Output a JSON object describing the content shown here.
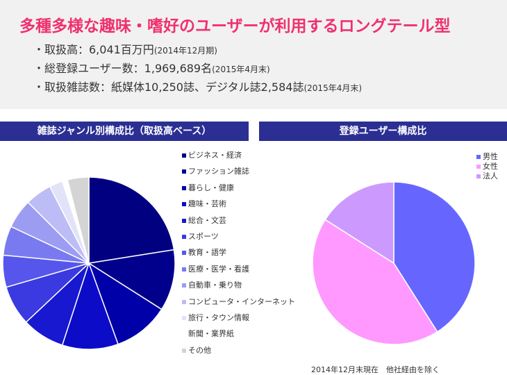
{
  "header": {
    "headline": "多種多様な趣味・嗜好のユーザーが利用するロングテール型",
    "bullets": [
      {
        "text": "・取扱高：6,041百万円",
        "note": "(2014年12月期)"
      },
      {
        "text": "・総登録ユーザー数：1,969,689名",
        "note": "(2015年4月末)"
      },
      {
        "text": "・取扱雑誌数：紙媒体10,250誌、デジタル誌2,584誌",
        "note": "(2015年4月末)"
      }
    ]
  },
  "chart_data": [
    {
      "type": "pie",
      "title": "雑誌ジャンル別構成比（取扱高ベース）",
      "start_angle_deg": 0,
      "direction": "clockwise",
      "categories": [
        "ビジネス・経済",
        "ファッション雑誌",
        "暮らし・健康",
        "趣味・芸術",
        "総合・文芸",
        "スポーツ",
        "教育・語学",
        "医療・医学・看護",
        "自動車・乗り物",
        "コンピュータ・インターネット",
        "旅行・タウン情報",
        "新聞・業界紙",
        "その他"
      ],
      "values": [
        22.5,
        11.5,
        10.5,
        10.5,
        8.0,
        7.5,
        6.0,
        5.5,
        5.5,
        5.0,
        2.5,
        1.0,
        4.0
      ],
      "colors": [
        "#000080",
        "#00008c",
        "#0000a8",
        "#0c0cc8",
        "#1818d0",
        "#3a3ae0",
        "#5656ec",
        "#7a7af0",
        "#9c9cf2",
        "#bcbcf6",
        "#e2e2f8",
        "#ffffff",
        "#d4d4d4"
      ],
      "legend_position": "right"
    },
    {
      "type": "pie",
      "title": "登録ユーザー構成比",
      "start_angle_deg": 0,
      "direction": "clockwise",
      "categories": [
        "男性",
        "女性",
        "法人"
      ],
      "values": [
        41,
        43,
        16
      ],
      "colors": [
        "#6666ff",
        "#ff99ff",
        "#cc99ff"
      ],
      "legend_position": "top-right",
      "note": "2014年12月末現在　他社経由を除く"
    }
  ]
}
